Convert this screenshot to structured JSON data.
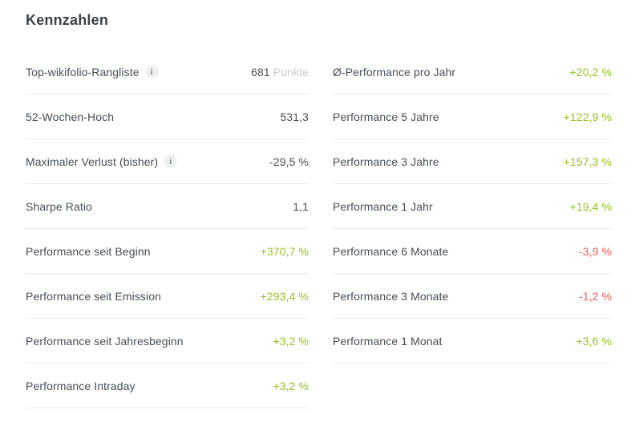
{
  "title": "Kennzahlen",
  "colors": {
    "positive": "#95c11f",
    "negative": "#f25c5c",
    "neutral_text": "#454e56",
    "unit_text": "#c6cbce",
    "divider": "#e9ebec",
    "heading": "#39424a",
    "info_icon_bg": "#eef1f2"
  },
  "info_icon_glyph": "i",
  "columns": {
    "left": {
      "rows": [
        {
          "label": "Top-wikifolio-Rangliste",
          "has_info": true,
          "value": "681",
          "unit": "Punkte",
          "status": "neutral"
        },
        {
          "label": "52-Wochen-Hoch",
          "has_info": false,
          "value": "531,3",
          "unit": "",
          "status": "neutral"
        },
        {
          "label": "Maximaler Verlust (bisher)",
          "has_info": true,
          "value": "-29,5 %",
          "unit": "",
          "status": "neutral"
        },
        {
          "label": "Sharpe Ratio",
          "has_info": false,
          "value": "1,1",
          "unit": "",
          "status": "neutral"
        },
        {
          "label": "Performance seit Beginn",
          "has_info": false,
          "value": "+370,7 %",
          "unit": "",
          "status": "positive"
        },
        {
          "label": "Performance seit Emission",
          "has_info": false,
          "value": "+293,4 %",
          "unit": "",
          "status": "positive"
        },
        {
          "label": "Performance seit Jahresbeginn",
          "has_info": false,
          "value": "+3,2 %",
          "unit": "",
          "status": "positive"
        },
        {
          "label": "Performance Intraday",
          "has_info": false,
          "value": "+3,2 %",
          "unit": "",
          "status": "positive"
        }
      ]
    },
    "right": {
      "rows": [
        {
          "label": "Ø-Performance pro Jahr",
          "has_info": false,
          "value": "+20,2 %",
          "unit": "",
          "status": "positive"
        },
        {
          "label": "Performance 5 Jahre",
          "has_info": false,
          "value": "+122,9 %",
          "unit": "",
          "status": "positive"
        },
        {
          "label": "Performance 3 Jahre",
          "has_info": false,
          "value": "+157,3 %",
          "unit": "",
          "status": "positive"
        },
        {
          "label": "Performance 1 Jahr",
          "has_info": false,
          "value": "+19,4 %",
          "unit": "",
          "status": "positive"
        },
        {
          "label": "Performance 6 Monate",
          "has_info": false,
          "value": "-3,9 %",
          "unit": "",
          "status": "negative"
        },
        {
          "label": "Performance 3 Monate",
          "has_info": false,
          "value": "-1,2 %",
          "unit": "",
          "status": "negative"
        },
        {
          "label": "Performance 1 Monat",
          "has_info": false,
          "value": "+3,6 %",
          "unit": "",
          "status": "positive"
        }
      ]
    }
  }
}
